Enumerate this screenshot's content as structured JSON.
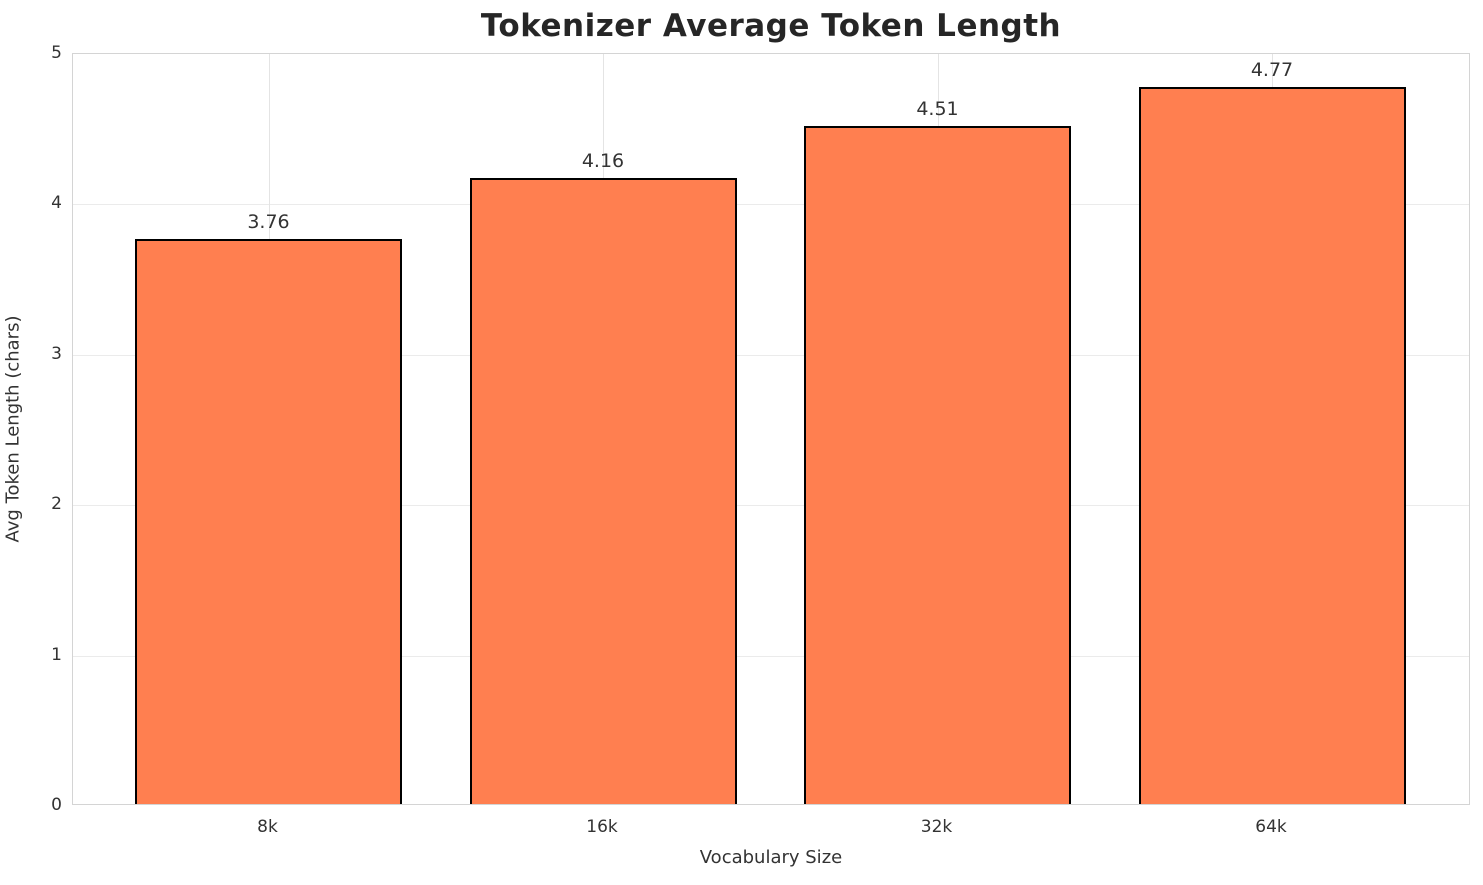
{
  "chart_data": {
    "type": "bar",
    "title": "Tokenizer Average Token Length",
    "xlabel": "Vocabulary Size",
    "ylabel": "Avg Token Length (chars)",
    "categories": [
      "8k",
      "16k",
      "32k",
      "64k"
    ],
    "values": [
      3.76,
      4.16,
      4.51,
      4.77
    ],
    "value_labels": [
      "3.76",
      "4.16",
      "4.51",
      "4.77"
    ],
    "ylim": [
      0,
      5
    ],
    "yticks": [
      "0",
      "1",
      "2",
      "3",
      "4",
      "5"
    ],
    "grid": "on",
    "legend": "none",
    "bar_color": "#FF7F50",
    "bar_edge_color": "#000000",
    "background_color": "#ffffff",
    "gridline_color": "#ebebeb",
    "spine_color": "#d4d4d4"
  }
}
